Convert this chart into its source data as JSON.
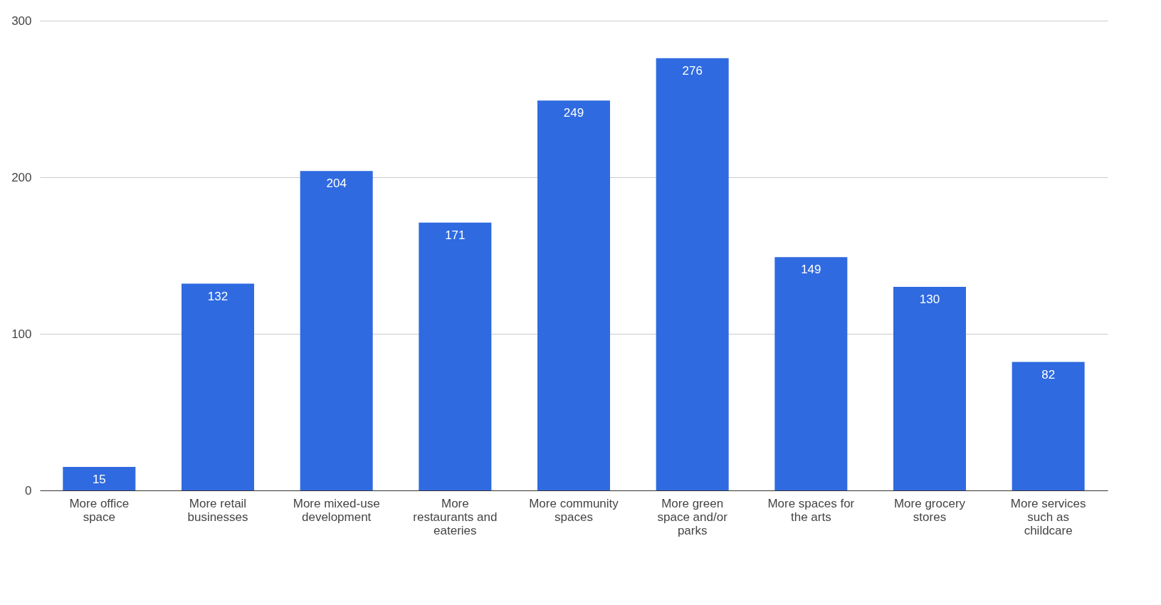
{
  "chart_data": {
    "type": "bar",
    "categories": [
      "More office space",
      "More retail businesses",
      "More mixed-use development",
      "More restaurants and eateries",
      "More community spaces",
      "More green space and/or parks",
      "More spaces for the arts",
      "More grocery stores",
      "More services such as childcare"
    ],
    "values": [
      15,
      132,
      204,
      171,
      249,
      276,
      149,
      130,
      82
    ],
    "color": "#2f6ae0",
    "ylim": [
      0,
      300
    ],
    "yticks": [
      0,
      100,
      200,
      300
    ],
    "grid": "y",
    "data_labels": true
  }
}
